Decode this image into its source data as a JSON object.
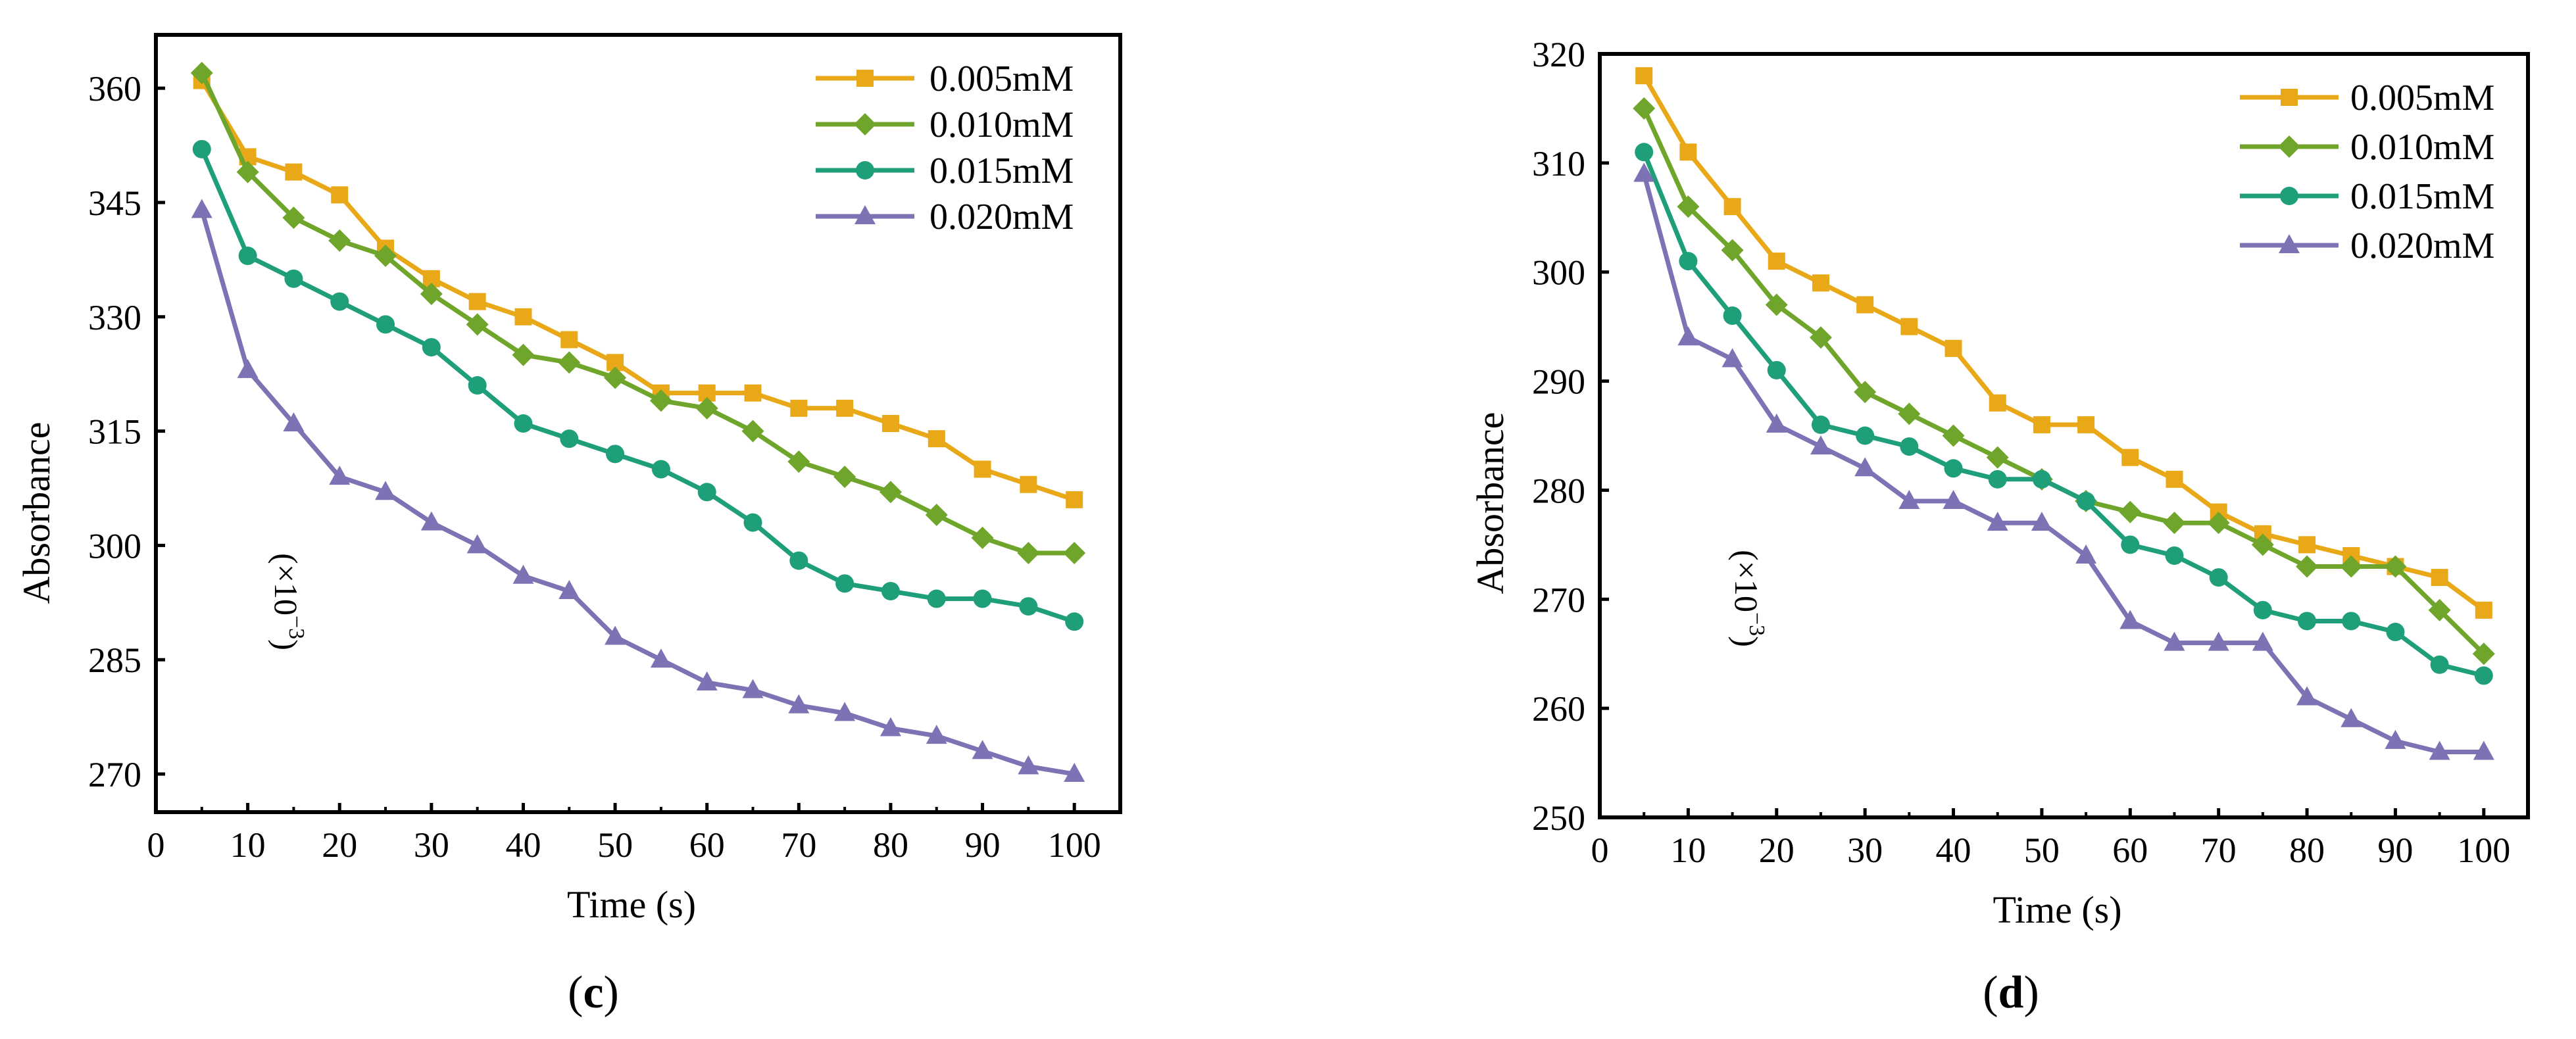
{
  "figure": {
    "panels": [
      "c",
      "d"
    ]
  },
  "legend_marker_shapes": [
    "square",
    "diamond",
    "circle",
    "triangle"
  ],
  "colors": {
    "series": [
      "#E8A817",
      "#6FA52A",
      "#1F9E7A",
      "#7B73B3"
    ],
    "axis": "#000000",
    "background": "#FFFFFF"
  },
  "chart_data": [
    {
      "type": "line",
      "panel_label": "c",
      "panel_label_text": "(c)",
      "xlabel": "Time (s)",
      "ylabel": "Absorbance",
      "ylabel_unit_parts": [
        "(×10",
        "−3",
        ")"
      ],
      "xlim": [
        0,
        105
      ],
      "ylim": [
        265,
        367
      ],
      "xticks": [
        0,
        10,
        20,
        30,
        40,
        50,
        60,
        70,
        80,
        90,
        100
      ],
      "yticks": [
        270,
        285,
        300,
        315,
        330,
        345,
        360
      ],
      "x": [
        5,
        10,
        15,
        20,
        25,
        30,
        35,
        40,
        45,
        50,
        55,
        60,
        65,
        70,
        75,
        80,
        85,
        90,
        95,
        100
      ],
      "legend_position": "top-right",
      "series": [
        {
          "name": "0.005mM",
          "marker": "square",
          "values": [
            361,
            351,
            349,
            346,
            339,
            335,
            332,
            330,
            327,
            324,
            320,
            320,
            320,
            318,
            318,
            316,
            314,
            310,
            308,
            306
          ]
        },
        {
          "name": "0.010mM",
          "marker": "diamond",
          "values": [
            362,
            349,
            343,
            340,
            338,
            333,
            329,
            325,
            324,
            322,
            319,
            318,
            315,
            311,
            309,
            307,
            304,
            301,
            299,
            299
          ]
        },
        {
          "name": "0.015mM",
          "marker": "circle",
          "values": [
            352,
            338,
            335,
            332,
            329,
            326,
            321,
            316,
            314,
            312,
            310,
            307,
            303,
            298,
            295,
            294,
            293,
            293,
            292,
            290
          ]
        },
        {
          "name": "0.020mM",
          "marker": "triangle",
          "values": [
            344,
            323,
            316,
            309,
            307,
            303,
            300,
            296,
            294,
            288,
            285,
            282,
            281,
            279,
            278,
            276,
            275,
            273,
            271,
            270
          ]
        }
      ]
    },
    {
      "type": "line",
      "panel_label": "d",
      "panel_label_text": "(d)",
      "xlabel": "Time (s)",
      "ylabel": "Absorbance",
      "ylabel_unit_parts": [
        "(×10",
        "−3",
        ")"
      ],
      "xlim": [
        0,
        105
      ],
      "ylim": [
        250,
        320
      ],
      "xticks": [
        0,
        10,
        20,
        30,
        40,
        50,
        60,
        70,
        80,
        90,
        100
      ],
      "yticks": [
        250,
        260,
        270,
        280,
        290,
        300,
        310,
        320
      ],
      "x": [
        5,
        10,
        15,
        20,
        25,
        30,
        35,
        40,
        45,
        50,
        55,
        60,
        65,
        70,
        75,
        80,
        85,
        90,
        95,
        100
      ],
      "legend_position": "top-right",
      "series": [
        {
          "name": "0.005mM",
          "marker": "square",
          "values": [
            318,
            311,
            306,
            301,
            299,
            297,
            295,
            293,
            288,
            286,
            286,
            283,
            281,
            278,
            276,
            275,
            274,
            273,
            272,
            269
          ]
        },
        {
          "name": "0.010mM",
          "marker": "diamond",
          "values": [
            315,
            306,
            302,
            297,
            294,
            289,
            287,
            285,
            283,
            281,
            279,
            278,
            277,
            277,
            275,
            273,
            273,
            273,
            269,
            265
          ]
        },
        {
          "name": "0.015mM",
          "marker": "circle",
          "values": [
            311,
            301,
            296,
            291,
            286,
            285,
            284,
            282,
            281,
            281,
            279,
            275,
            274,
            272,
            269,
            268,
            268,
            267,
            264,
            263
          ]
        },
        {
          "name": "0.020mM",
          "marker": "triangle",
          "values": [
            309,
            294,
            292,
            286,
            284,
            282,
            279,
            279,
            277,
            277,
            274,
            268,
            266,
            266,
            266,
            261,
            259,
            257,
            256,
            256
          ]
        }
      ]
    }
  ]
}
